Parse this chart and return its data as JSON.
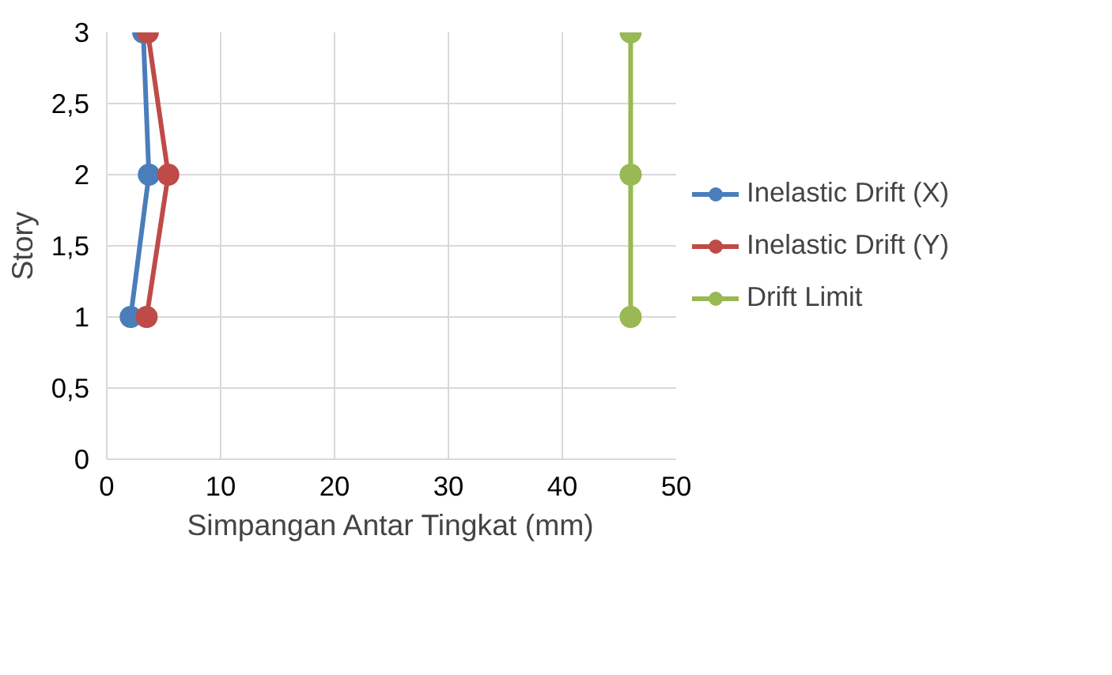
{
  "chart_data": {
    "type": "line",
    "xlabel": "Simpangan Antar Tingkat (mm)",
    "ylabel": "Story",
    "xlim": [
      0,
      50
    ],
    "xticks": [
      0,
      10,
      20,
      30,
      40,
      50
    ],
    "ylim": [
      0,
      3
    ],
    "yticks": [
      0,
      {
        "value": 0.5,
        "label": "0,5"
      },
      1,
      {
        "value": 1.5,
        "label": "1,5"
      },
      2,
      {
        "value": 2.5,
        "label": "2,5"
      },
      3
    ],
    "grid": true,
    "legend": "right",
    "marker": "circle",
    "line_style": "solid",
    "series": [
      {
        "name": "Inelastic Drift (X)",
        "color": "#4a7ebb",
        "x": [
          2.1,
          3.7,
          3.2
        ],
        "values": [
          1,
          2,
          3
        ]
      },
      {
        "name": "Inelastic Drift (Y)",
        "color": "#be4b48",
        "x": [
          3.5,
          5.4,
          3.6
        ],
        "values": [
          1,
          2,
          3
        ]
      },
      {
        "name": "Drift Limit",
        "color": "#98b954",
        "x": [
          46,
          46,
          46
        ],
        "values": [
          1,
          2,
          3
        ]
      }
    ]
  }
}
